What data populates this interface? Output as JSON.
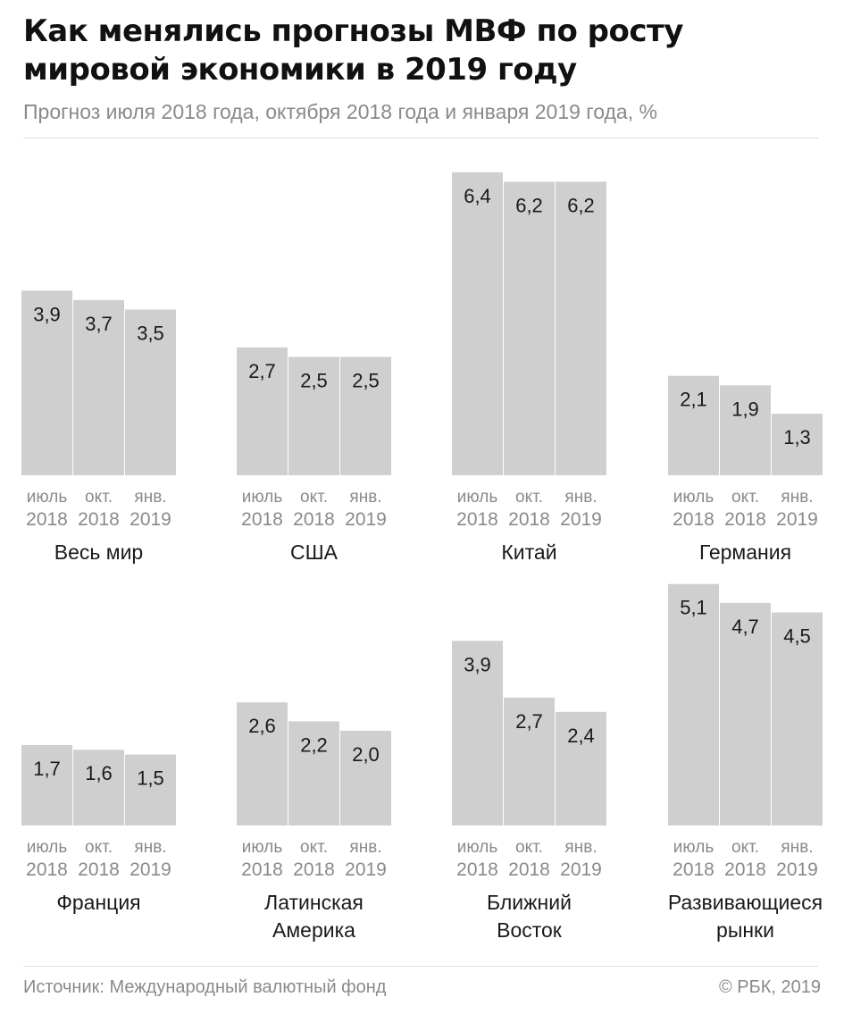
{
  "title_line1": "Как менялись прогнозы МВФ по росту",
  "title_line2": "мировой экономики в 2019 году",
  "subtitle": "Прогноз июля 2018 года, октября 2018 года и января 2019 года, %",
  "source": "Источник: Международный валютный фонд",
  "copyright": "© РБК, 2019",
  "colors": {
    "bar": "#cfcfcf",
    "value_text": "#1a1a1a",
    "tick_text": "#8a8a8a"
  },
  "chart_data": {
    "type": "bar",
    "categories": [
      {
        "top": "июль",
        "bottom": "2018"
      },
      {
        "top": "окт.",
        "bottom": "2018"
      },
      {
        "top": "янв.",
        "bottom": "2019"
      }
    ],
    "panels": [
      {
        "label": [
          "Весь мир"
        ],
        "values": [
          3.9,
          3.7,
          3.5
        ],
        "value_labels": [
          "3,9",
          "3,7",
          "3,5"
        ]
      },
      {
        "label": [
          "США"
        ],
        "values": [
          2.7,
          2.5,
          2.5
        ],
        "value_labels": [
          "2,7",
          "2,5",
          "2,5"
        ]
      },
      {
        "label": [
          "Китай"
        ],
        "values": [
          6.4,
          6.2,
          6.2
        ],
        "value_labels": [
          "6,4",
          "6,2",
          "6,2"
        ]
      },
      {
        "label": [
          "Германия"
        ],
        "values": [
          2.1,
          1.9,
          1.3
        ],
        "value_labels": [
          "2,1",
          "1,9",
          "1,3"
        ]
      },
      {
        "label": [
          "Франция"
        ],
        "values": [
          1.7,
          1.6,
          1.5
        ],
        "value_labels": [
          "1,7",
          "1,6",
          "1,5"
        ]
      },
      {
        "label": [
          "Латинская",
          "Америка"
        ],
        "values": [
          2.6,
          2.2,
          2.0
        ],
        "value_labels": [
          "2,6",
          "2,2",
          "2,0"
        ]
      },
      {
        "label": [
          "Ближний",
          "Восток"
        ],
        "values": [
          3.9,
          2.7,
          2.4
        ],
        "value_labels": [
          "3,9",
          "2,7",
          "2,4"
        ]
      },
      {
        "label": [
          "Развивающиеся",
          "рынки"
        ],
        "values": [
          5.1,
          4.7,
          4.5
        ],
        "value_labels": [
          "5,1",
          "4,7",
          "4,5"
        ]
      }
    ]
  }
}
